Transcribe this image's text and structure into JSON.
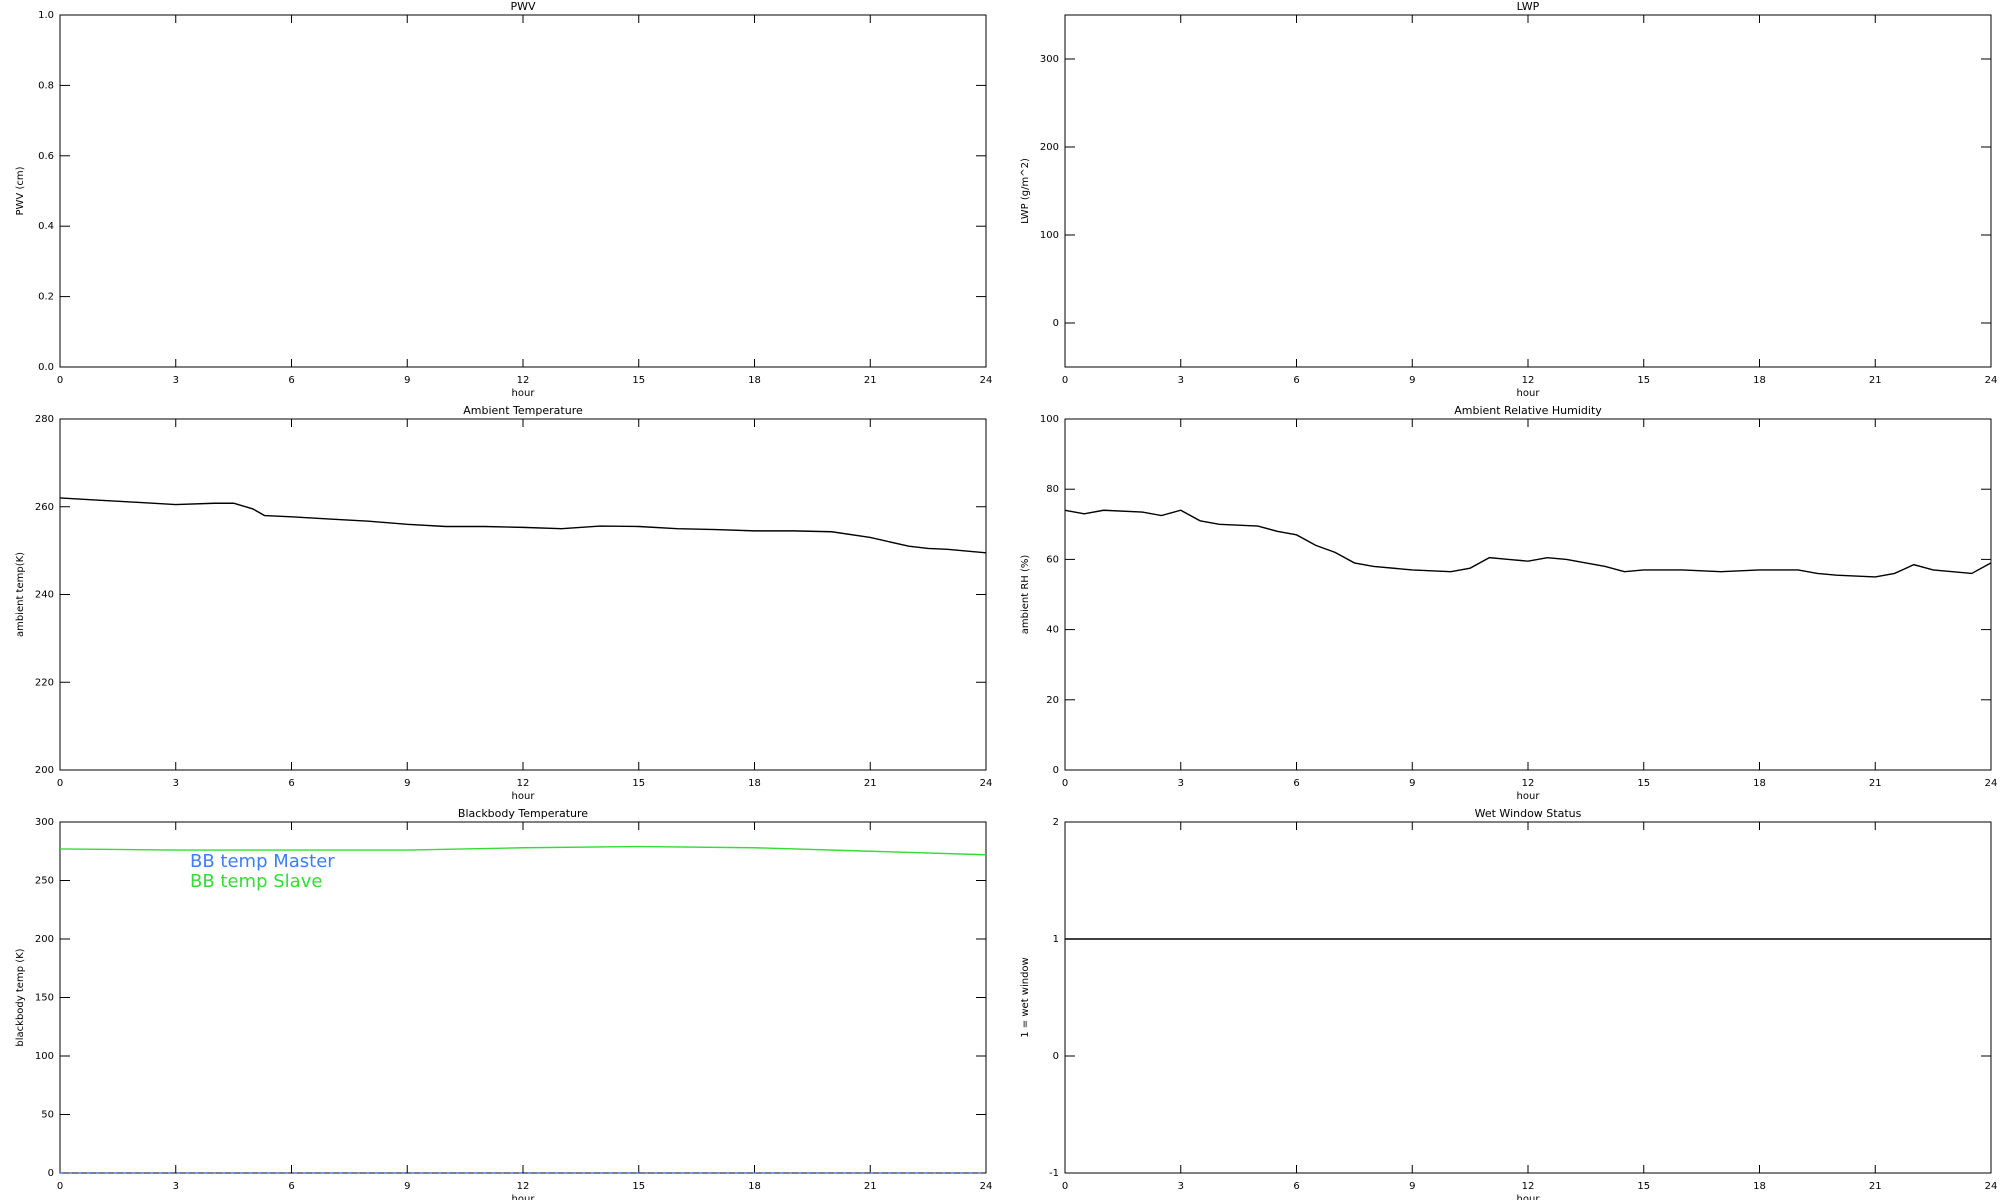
{
  "chart_data": [
    {
      "type": "line",
      "title": "PWV",
      "xlabel": "hour",
      "ylabel": "PWV (cm)",
      "xlim": [
        0,
        24
      ],
      "xticks": [
        0,
        3,
        6,
        9,
        12,
        15,
        18,
        21,
        24
      ],
      "ylim": [
        0,
        1
      ],
      "yticks": [
        {
          "value": 0,
          "label": "0.0"
        },
        0.2,
        0.4,
        0.6,
        0.8,
        {
          "value": 1,
          "label": "1.0"
        }
      ]
    },
    {
      "type": "line",
      "title": "LWP",
      "xlabel": "hour",
      "ylabel": "LWP (g/m^2)",
      "xlim": [
        0,
        24
      ],
      "xticks": [
        0,
        3,
        6,
        9,
        12,
        15,
        18,
        21,
        24
      ],
      "ylim": [
        -50,
        350
      ],
      "yticks": [
        0,
        100,
        200,
        300
      ]
    },
    {
      "type": "line",
      "title": "Ambient Temperature",
      "xlabel": "hour",
      "ylabel": "ambient temp(K)",
      "xlim": [
        0,
        24
      ],
      "xticks": [
        0,
        3,
        6,
        9,
        12,
        15,
        18,
        21,
        24
      ],
      "ylim": [
        200,
        280
      ],
      "yticks": [
        200,
        220,
        240,
        260,
        280
      ],
      "color": "#000000",
      "x": [
        0,
        1,
        2,
        3,
        4,
        4.5,
        5,
        5.3,
        6,
        7,
        8,
        9,
        10,
        11,
        12,
        13,
        14,
        15,
        16,
        17,
        18,
        19,
        20,
        21,
        22,
        22.5,
        23,
        24
      ],
      "values": [
        262,
        261.5,
        261,
        260.5,
        260.8,
        260.8,
        259.5,
        258,
        257.7,
        257.2,
        256.7,
        256,
        255.5,
        255.5,
        255.3,
        255,
        255.6,
        255.5,
        255,
        254.8,
        254.5,
        254.5,
        254.3,
        253,
        251,
        250.5,
        250.3,
        249.5
      ]
    },
    {
      "type": "line",
      "title": "Ambient Relative Humidity",
      "xlabel": "hour",
      "ylabel": "ambient RH (%)",
      "xlim": [
        0,
        24
      ],
      "xticks": [
        0,
        3,
        6,
        9,
        12,
        15,
        18,
        21,
        24
      ],
      "ylim": [
        0,
        100
      ],
      "yticks": [
        0,
        20,
        40,
        60,
        80,
        100
      ],
      "color": "#000000",
      "x": [
        0,
        0.5,
        1,
        2,
        2.5,
        3,
        3.5,
        4,
        5,
        5.5,
        6,
        6.5,
        7,
        7.5,
        8,
        9,
        10,
        10.5,
        11,
        11.5,
        12,
        12.5,
        13,
        14,
        14.5,
        15,
        16,
        17,
        18,
        19,
        19.5,
        20,
        21,
        21.5,
        22,
        22.5,
        23,
        23.5,
        24
      ],
      "values": [
        74,
        73,
        74,
        73.5,
        72.5,
        74,
        71,
        70,
        69.5,
        68,
        67,
        64,
        62,
        59,
        58,
        57,
        56.5,
        57.5,
        60.5,
        60,
        59.5,
        60.5,
        60,
        58,
        56.5,
        57,
        57,
        56.5,
        57,
        57,
        56,
        55.5,
        55,
        56,
        58.5,
        57,
        56.5,
        56,
        59
      ]
    },
    {
      "type": "line",
      "title": "Blackbody Temperature",
      "xlabel": "hour",
      "ylabel": "blackbody temp (K)",
      "xlim": [
        0,
        24
      ],
      "xticks": [
        0,
        3,
        6,
        9,
        12,
        15,
        18,
        21,
        24
      ],
      "ylim": [
        0,
        300
      ],
      "yticks": [
        0,
        50,
        100,
        150,
        200,
        250,
        300
      ],
      "legend": "upper left",
      "x": [
        0,
        3,
        6,
        9,
        12,
        15,
        18,
        21,
        24
      ],
      "series": [
        {
          "name": "BB temp Master",
          "color": "#3d7dff",
          "values": [
            0,
            0,
            0,
            0,
            0,
            0,
            0,
            0,
            0
          ]
        },
        {
          "name": "BB temp Slave",
          "color": "#33dd33",
          "values": [
            277,
            276,
            276,
            276,
            278,
            279,
            278,
            275,
            272
          ]
        }
      ]
    },
    {
      "type": "line",
      "title": "Wet Window Status",
      "xlabel": "hour",
      "ylabel": "1 = wet window",
      "xlim": [
        0,
        24
      ],
      "xticks": [
        0,
        3,
        6,
        9,
        12,
        15,
        18,
        21,
        24
      ],
      "ylim": [
        -1,
        2
      ],
      "yticks": [
        -1,
        0,
        1,
        2
      ],
      "color": "#000000",
      "x": [
        0,
        24
      ],
      "values": [
        1,
        1
      ]
    }
  ]
}
